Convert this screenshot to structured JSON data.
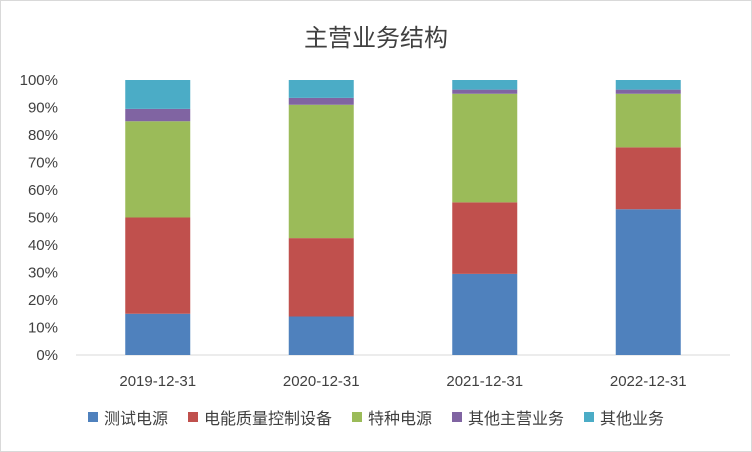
{
  "chart_data": {
    "type": "bar",
    "stacked": true,
    "title": "主营业务结构",
    "xlabel": "",
    "ylabel": "",
    "ylim": [
      0,
      100
    ],
    "y_ticks": [
      "0%",
      "10%",
      "20%",
      "30%",
      "40%",
      "50%",
      "60%",
      "70%",
      "80%",
      "90%",
      "100%"
    ],
    "categories": [
      "2019-12-31",
      "2020-12-31",
      "2021-12-31",
      "2022-12-31"
    ],
    "series": [
      {
        "name": "测试电源",
        "color": "#4f81bd",
        "values": [
          15,
          14,
          29.5,
          53
        ]
      },
      {
        "name": "电能质量控制设备",
        "color": "#c0504d",
        "values": [
          35,
          28.5,
          26,
          22.5
        ]
      },
      {
        "name": "特种电源",
        "color": "#9bbb59",
        "values": [
          35,
          48.5,
          39.5,
          19.5
        ]
      },
      {
        "name": "其他主营业务",
        "color": "#8064a2",
        "values": [
          4.5,
          2.5,
          1.5,
          1.5
        ]
      },
      {
        "name": "其他业务",
        "color": "#4bacc6",
        "values": [
          10.5,
          6.5,
          3.5,
          3.5
        ]
      }
    ],
    "grid": false,
    "legend_position": "bottom"
  }
}
